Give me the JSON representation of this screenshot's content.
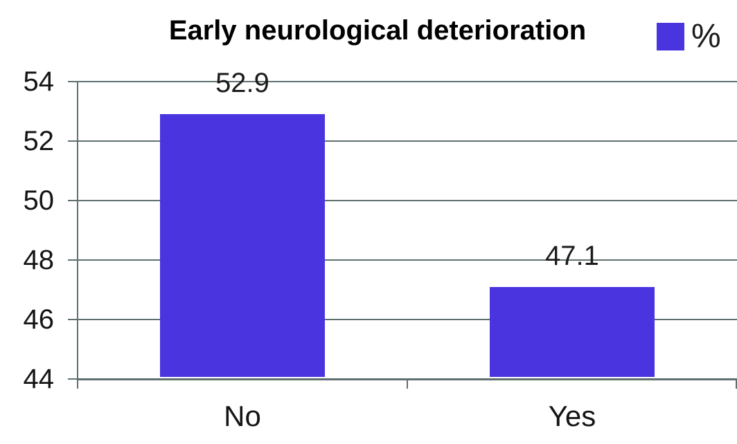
{
  "chart_data": {
    "type": "bar",
    "title": "Early neurological deterioration",
    "categories": [
      "No",
      "Yes"
    ],
    "values": [
      52.9,
      47.1
    ],
    "data_labels": [
      "52.9",
      "47.1"
    ],
    "legend": {
      "label": "%",
      "position": "top-right"
    },
    "xlabel": "",
    "ylabel": "",
    "ylim": [
      44,
      54
    ],
    "yticks": [
      44,
      46,
      48,
      50,
      52,
      54
    ],
    "grid": true,
    "bar_color": "#4934e0"
  },
  "styles": {
    "grid_color": "#5f6f6f",
    "axis_color": "#5f6f6f",
    "text_color": "#141414",
    "background": "#ffffff"
  }
}
